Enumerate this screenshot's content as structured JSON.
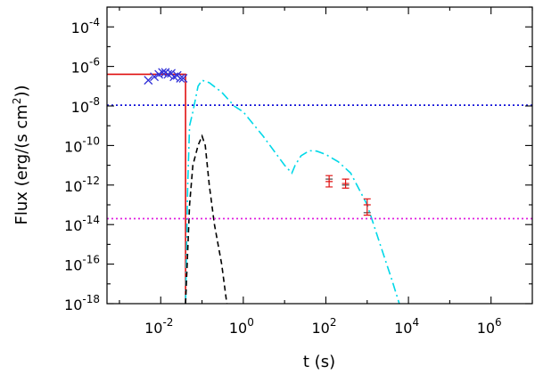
{
  "chart_data": {
    "type": "line",
    "xscale": "log",
    "yscale": "log",
    "xlim": [
      0.0005,
      10000000
    ],
    "ylim": [
      1e-18,
      0.001
    ],
    "xlabel": "t (s)",
    "ylabel_main": "Flux (erg/(s cm",
    "ylabel_sup": "2",
    "ylabel_tail": "))",
    "grid": false,
    "legend": "none",
    "x_major_ticks": [
      {
        "value": 0.01,
        "base": "10",
        "exp": "-2"
      },
      {
        "value": 1,
        "base": "10",
        "exp": "0"
      },
      {
        "value": 100,
        "base": "10",
        "exp": "2"
      },
      {
        "value": 10000,
        "base": "10",
        "exp": "4"
      },
      {
        "value": 1000000,
        "base": "10",
        "exp": "6"
      }
    ],
    "y_major_ticks": [
      {
        "value": 0.0001,
        "base": "10",
        "exp": "-4"
      },
      {
        "value": 1e-06,
        "base": "10",
        "exp": "-6"
      },
      {
        "value": 1e-08,
        "base": "10",
        "exp": "-8"
      },
      {
        "value": 1e-10,
        "base": "10",
        "exp": "-10"
      },
      {
        "value": 1e-12,
        "base": "10",
        "exp": "-12"
      },
      {
        "value": 1e-14,
        "base": "10",
        "exp": "-14"
      },
      {
        "value": 1e-16,
        "base": "10",
        "exp": "-16"
      },
      {
        "value": 1e-18,
        "base": "10",
        "exp": "-18"
      }
    ],
    "series": [
      {
        "color": "#e01010",
        "style": "solid",
        "points": [
          [
            0.0005,
            4e-07
          ],
          [
            0.04,
            4e-07
          ],
          [
            0.04,
            1e-18
          ]
        ]
      },
      {
        "color": "#00d8e8",
        "style": "dashdot",
        "points": [
          [
            0.04,
            1e-18
          ],
          [
            0.045,
            1e-12
          ],
          [
            0.05,
            1e-09
          ],
          [
            0.06,
            5e-09
          ],
          [
            0.08,
            1e-07
          ],
          [
            0.1,
            2e-07
          ],
          [
            0.15,
            1.5e-07
          ],
          [
            0.3,
            5e-08
          ],
          [
            0.6,
            1e-08
          ],
          [
            1,
            5e-09
          ],
          [
            3,
            3e-10
          ],
          [
            10,
            1e-11
          ],
          [
            15,
            4e-12
          ],
          [
            18,
            1e-11
          ],
          [
            25,
            3e-11
          ],
          [
            40,
            5.5e-11
          ],
          [
            60,
            5.2e-11
          ],
          [
            100,
            3.5e-11
          ],
          [
            200,
            1.5e-11
          ],
          [
            400,
            4e-12
          ],
          [
            1000,
            1e-13
          ],
          [
            2000,
            1.2e-15
          ],
          [
            4000,
            1.5e-17
          ],
          [
            6000,
            1e-18
          ]
        ]
      },
      {
        "color": "#000000",
        "style": "dashed",
        "points": [
          [
            0.04,
            1e-18
          ],
          [
            0.05,
            1e-13
          ],
          [
            0.06,
            1e-11
          ],
          [
            0.08,
            1e-10
          ],
          [
            0.1,
            3e-10
          ],
          [
            0.12,
            1e-10
          ],
          [
            0.15,
            1e-12
          ],
          [
            0.2,
            1e-14
          ],
          [
            0.3,
            1e-16
          ],
          [
            0.4,
            1e-18
          ]
        ]
      },
      {
        "color": "#1010d8",
        "style": "dotted",
        "points": [
          [
            0.0005,
            1.1e-08
          ],
          [
            10000000,
            1.1e-08
          ]
        ]
      },
      {
        "color": "#e020e0",
        "style": "dotted",
        "points": [
          [
            0.0005,
            2e-14
          ],
          [
            10000000,
            2e-14
          ]
        ]
      }
    ],
    "cross_markers": {
      "color": "#3030d8",
      "points": [
        [
          0.005,
          2e-07
        ],
        [
          0.007,
          3e-07
        ],
        [
          0.009,
          4e-07
        ],
        [
          0.011,
          5e-07
        ],
        [
          0.013,
          5e-07
        ],
        [
          0.015,
          4e-07
        ],
        [
          0.018,
          4.5e-07
        ],
        [
          0.021,
          3e-07
        ],
        [
          0.025,
          3.5e-07
        ],
        [
          0.03,
          2.5e-07
        ],
        [
          0.035,
          2.5e-07
        ]
      ]
    },
    "error_bars": {
      "color": "#e01010",
      "points": [
        {
          "x": 120,
          "y": 1.5e-12,
          "lo": 8e-13,
          "hi": 3e-12
        },
        {
          "x": 300,
          "y": 1.2e-12,
          "lo": 7e-13,
          "hi": 2e-12
        },
        {
          "x": 1000,
          "y": 1e-13,
          "lo": 3e-14,
          "hi": 2e-13
        }
      ]
    },
    "gray_points": {
      "color": "#555555",
      "points": [
        [
          120,
          2e-12
        ],
        [
          300,
          1e-12
        ],
        [
          1000,
          4e-14
        ]
      ]
    }
  }
}
